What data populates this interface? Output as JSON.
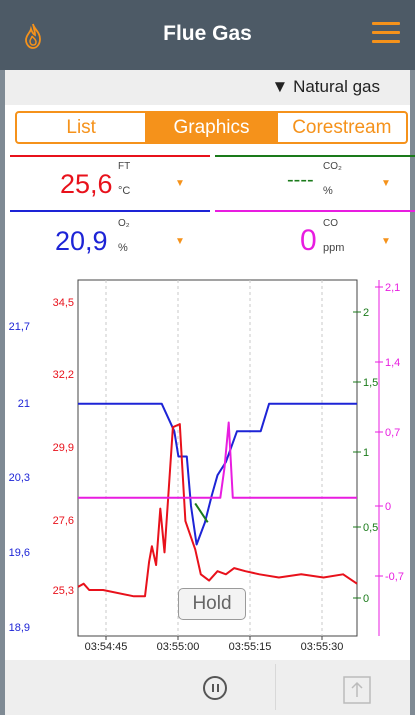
{
  "app": {
    "title": "Flue Gas"
  },
  "subbar": {
    "fuel": "▼ Natural gas"
  },
  "tabs": [
    {
      "label": "List",
      "active": false
    },
    {
      "label": "Graphics",
      "active": true
    },
    {
      "label": "Corestream",
      "active": false
    }
  ],
  "readings": {
    "ft": {
      "symbol": "FT",
      "value": "25,6",
      "unit": "°C",
      "color": "#e8111b"
    },
    "co2": {
      "symbol": "CO₂",
      "value": "----",
      "unit": "%",
      "color": "#1a7a1a"
    },
    "o2": {
      "symbol": "O₂",
      "value": "20,9",
      "unit": "%",
      "color": "#1d24d6"
    },
    "co": {
      "symbol": "CO",
      "value": "0",
      "unit": "ppm",
      "color": "#e81de0"
    },
    "arrow": "▼"
  },
  "hold_label": "Hold",
  "chart_data": {
    "type": "line",
    "x_ticks": [
      "03:54:45",
      "03:55:00",
      "03:55:15",
      "03:55:30"
    ],
    "axes": {
      "o2": {
        "color": "#1d24d6",
        "ticks": [
          "21,7",
          "21",
          "20,3",
          "19,6",
          "18,9"
        ],
        "ylim": [
          18.9,
          21.7
        ]
      },
      "ft": {
        "color": "#e8111b",
        "ticks": [
          "34,5",
          "32,2",
          "29,9",
          "27,6",
          "25,3"
        ],
        "ylim": [
          25.3,
          34.5
        ]
      },
      "co2": {
        "color": "#1a7a1a",
        "ticks": [
          "2",
          "1,5",
          "1",
          "0,5",
          "0"
        ],
        "ylim": [
          0,
          2
        ]
      },
      "co": {
        "color": "#e81de0",
        "ticks": [
          "2,1",
          "1,4",
          "0,7",
          "0",
          "-0,7"
        ],
        "ylim": [
          -0.7,
          2.1
        ]
      }
    },
    "series": [
      {
        "name": "O₂",
        "axis": "o2",
        "color": "#1d24d6",
        "points": [
          [
            0,
            21.03
          ],
          [
            0.3,
            21.03
          ],
          [
            0.345,
            20.78
          ],
          [
            0.36,
            20.55
          ],
          [
            0.39,
            20.55
          ],
          [
            0.405,
            20.1
          ],
          [
            0.425,
            19.75
          ],
          [
            0.455,
            19.95
          ],
          [
            0.48,
            20.2
          ],
          [
            0.5,
            20.38
          ],
          [
            0.53,
            20.5
          ],
          [
            0.57,
            20.78
          ],
          [
            0.655,
            20.78
          ],
          [
            0.685,
            21.03
          ],
          [
            1.0,
            21.03
          ]
        ]
      },
      {
        "name": "FT",
        "axis": "ft",
        "color": "#e8111b",
        "points": [
          [
            0,
            25.4
          ],
          [
            0.02,
            25.5
          ],
          [
            0.04,
            25.3
          ],
          [
            0.09,
            25.3
          ],
          [
            0.2,
            25.1
          ],
          [
            0.24,
            25.1
          ],
          [
            0.255,
            26.2
          ],
          [
            0.265,
            26.7
          ],
          [
            0.28,
            26.1
          ],
          [
            0.295,
            27.9
          ],
          [
            0.31,
            26.5
          ],
          [
            0.34,
            30.5
          ],
          [
            0.365,
            30.6
          ],
          [
            0.385,
            27.5
          ],
          [
            0.42,
            26.6
          ],
          [
            0.44,
            25.8
          ],
          [
            0.47,
            25.6
          ],
          [
            0.5,
            25.9
          ],
          [
            0.53,
            25.8
          ],
          [
            0.56,
            26.0
          ],
          [
            0.6,
            25.9
          ],
          [
            0.65,
            25.8
          ],
          [
            0.72,
            25.7
          ],
          [
            0.8,
            25.8
          ],
          [
            0.88,
            25.7
          ],
          [
            0.95,
            25.8
          ],
          [
            1.0,
            25.5
          ]
        ]
      },
      {
        "name": "CO₂",
        "axis": "co2",
        "color": "#1a7a1a",
        "points": [
          [
            0.42,
            0.68
          ],
          [
            0.465,
            0.55
          ]
        ]
      },
      {
        "name": "CO",
        "axis": "co",
        "color": "#e81de0",
        "points": [
          [
            0,
            0
          ],
          [
            0.51,
            0
          ],
          [
            0.525,
            0.3
          ],
          [
            0.54,
            0.75
          ],
          [
            0.555,
            0
          ],
          [
            1.0,
            0
          ]
        ]
      }
    ]
  }
}
